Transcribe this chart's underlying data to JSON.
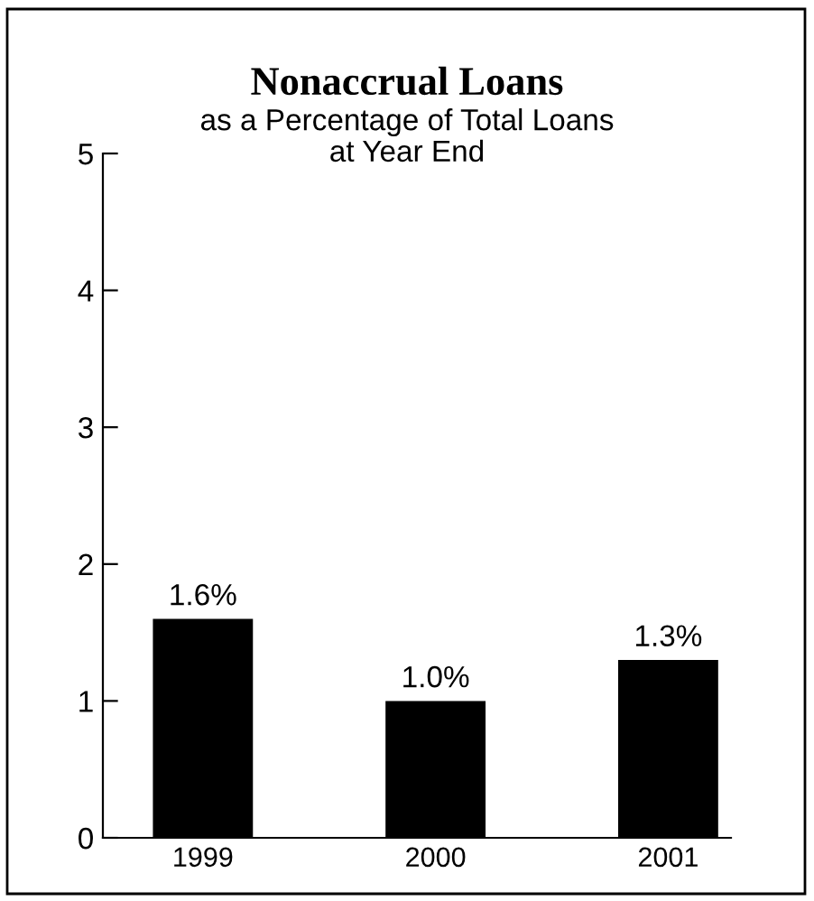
{
  "chart_data": {
    "type": "bar",
    "title": "Nonaccrual Loans",
    "subtitle": "as a Percentage of Total Loans\nat Year End",
    "categories": [
      "1999",
      "2000",
      "2001"
    ],
    "values": [
      1.6,
      1.0,
      1.3
    ],
    "color": "#000000",
    "value_labels": [
      "1.6%",
      "1.0%",
      "1.3%"
    ],
    "ylim": [
      0,
      5
    ],
    "yticks": [
      0,
      1,
      2,
      3,
      4,
      5
    ],
    "grid": false,
    "legend": false
  }
}
